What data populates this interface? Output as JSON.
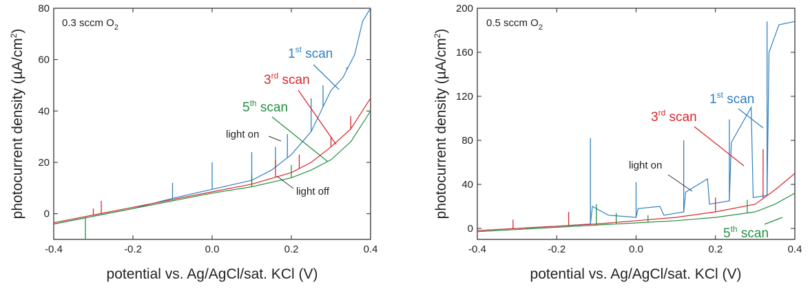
{
  "colors": {
    "scan1": "#2f7fc1",
    "scan3": "#d9262a",
    "scan5": "#23903f",
    "axis": "#222222",
    "annotation": "#333333"
  },
  "chart_data": [
    {
      "type": "line",
      "condition": {
        "text": "0.3 sccm O",
        "sub": "2"
      },
      "xlabel": "potential vs. Ag/AgCl/sat. KCl (V)",
      "ylabel": "photocurrent density (µA/cm²)",
      "ylabel_parts": {
        "main": "photocurrent density (µA/cm",
        "sup": "2",
        "end": ")"
      },
      "xlim": [
        -0.4,
        0.4
      ],
      "ylim": [
        -10,
        80
      ],
      "xticks": [
        "-0.4",
        "-0.2",
        "0.0",
        "0.2",
        "0.4"
      ],
      "yticks": [
        "0",
        "20",
        "40",
        "60",
        "80"
      ],
      "xtick_values": [
        -0.4,
        -0.2,
        0.0,
        0.2,
        0.4
      ],
      "ytick_values": [
        0,
        20,
        40,
        60,
        80
      ],
      "series": [
        {
          "key": "scan1",
          "label": {
            "num": "1",
            "sup": "st",
            "word": " scan"
          },
          "points": [
            [
              -0.4,
              -4
            ],
            [
              -0.3,
              -1
            ],
            [
              -0.2,
              2
            ],
            [
              -0.1,
              6
            ],
            [
              0.0,
              9.5
            ],
            [
              0.1,
              13
            ],
            [
              0.15,
              17
            ],
            [
              0.2,
              23
            ],
            [
              0.25,
              32
            ],
            [
              0.3,
              48
            ],
            [
              0.33,
              53
            ],
            [
              0.36,
              62
            ],
            [
              0.38,
              75
            ],
            [
              0.4,
              80
            ]
          ],
          "spikes": [
            [
              -0.1,
              12
            ],
            [
              0.0,
              20
            ],
            [
              0.1,
              24
            ],
            [
              0.16,
              26
            ],
            [
              0.19,
              31
            ],
            [
              0.25,
              45
            ],
            [
              0.28,
              50
            ],
            [
              0.34,
              57
            ]
          ]
        },
        {
          "key": "scan3",
          "label": {
            "num": "3",
            "sup": "rd",
            "word": " scan"
          },
          "points": [
            [
              -0.4,
              -3.5
            ],
            [
              -0.3,
              -0.5
            ],
            [
              -0.2,
              2.5
            ],
            [
              -0.1,
              5.5
            ],
            [
              0.0,
              8.5
            ],
            [
              0.1,
              11.5
            ],
            [
              0.2,
              16
            ],
            [
              0.25,
              20
            ],
            [
              0.3,
              26
            ],
            [
              0.35,
              33
            ],
            [
              0.4,
              45
            ]
          ],
          "spikes": [
            [
              -0.3,
              2
            ],
            [
              -0.28,
              5
            ],
            [
              0.1,
              14
            ],
            [
              0.16,
              21
            ],
            [
              0.22,
              23
            ],
            [
              0.3,
              30
            ],
            [
              0.35,
              38
            ]
          ]
        },
        {
          "key": "scan5",
          "label": {
            "num": "5",
            "sup": "th",
            "word": " scan"
          },
          "points": [
            [
              -0.4,
              -4
            ],
            [
              -0.3,
              -1
            ],
            [
              -0.2,
              2
            ],
            [
              -0.1,
              5
            ],
            [
              0.0,
              8
            ],
            [
              0.1,
              10.5
            ],
            [
              0.2,
              14
            ],
            [
              0.25,
              17
            ],
            [
              0.3,
              21
            ],
            [
              0.35,
              28
            ],
            [
              0.4,
              40
            ]
          ],
          "spikes": [
            [
              -0.32,
              -10
            ],
            [
              0.1,
              15
            ],
            [
              0.2,
              19
            ]
          ]
        }
      ],
      "annotations": {
        "light_on": "light on",
        "light_off": "light off"
      }
    },
    {
      "type": "line",
      "condition": {
        "text": "0.5 sccm O",
        "sub": "2"
      },
      "xlabel": "potential vs. Ag/AgCl/sat. KCl (V)",
      "ylabel": "photocurrent density (µA/cm²)",
      "ylabel_parts": {
        "main": "photocurrent density (µA/cm",
        "sup": "2",
        "end": ")"
      },
      "xlim": [
        -0.4,
        0.4
      ],
      "ylim": [
        -10,
        200
      ],
      "xticks": [
        "-0.4",
        "-0.2",
        "0.0",
        "0.2",
        "0.4"
      ],
      "yticks": [
        "0",
        "40",
        "80",
        "120",
        "160",
        "200"
      ],
      "xtick_values": [
        -0.4,
        -0.2,
        0.0,
        0.2,
        0.4
      ],
      "ytick_values": [
        0,
        40,
        80,
        120,
        160,
        200
      ],
      "series": [
        {
          "key": "scan1",
          "label": {
            "num": "1",
            "sup": "st",
            "word": " scan"
          },
          "points": [
            [
              -0.4,
              -2
            ],
            [
              -0.2,
              2
            ],
            [
              -0.115,
              4
            ],
            [
              -0.11,
              20
            ],
            [
              -0.07,
              12
            ],
            [
              0.0,
              10
            ],
            [
              0.005,
              18
            ],
            [
              0.06,
              20
            ],
            [
              0.07,
              12
            ],
            [
              0.12,
              15
            ],
            [
              0.125,
              33
            ],
            [
              0.18,
              45
            ],
            [
              0.185,
              22
            ],
            [
              0.235,
              25
            ],
            [
              0.24,
              78
            ],
            [
              0.29,
              110
            ],
            [
              0.295,
              28
            ],
            [
              0.33,
              30
            ],
            [
              0.335,
              160
            ],
            [
              0.36,
              185
            ],
            [
              0.4,
              188
            ]
          ],
          "spikes": [
            [
              -0.115,
              82
            ],
            [
              0.0,
              42
            ],
            [
              0.12,
              80
            ],
            [
              0.235,
              99
            ],
            [
              0.33,
              188
            ]
          ]
        },
        {
          "key": "scan3",
          "label": {
            "num": "3",
            "sup": "rd",
            "word": " scan"
          },
          "points": [
            [
              -0.4,
              -2
            ],
            [
              -0.2,
              2
            ],
            [
              -0.1,
              4
            ],
            [
              0.0,
              7
            ],
            [
              0.1,
              10
            ],
            [
              0.2,
              15
            ],
            [
              0.3,
              22
            ],
            [
              0.35,
              35
            ],
            [
              0.4,
              50
            ]
          ],
          "spikes": [
            [
              -0.31,
              8
            ],
            [
              -0.17,
              15
            ],
            [
              0.2,
              28
            ],
            [
              0.32,
              72
            ]
          ]
        },
        {
          "key": "scan5",
          "label": {
            "num": "5",
            "sup": "th",
            "word": " scan"
          },
          "points": [
            [
              -0.4,
              -3
            ],
            [
              -0.2,
              1
            ],
            [
              -0.1,
              3
            ],
            [
              0.0,
              5
            ],
            [
              0.1,
              7
            ],
            [
              0.2,
              10
            ],
            [
              0.3,
              15
            ],
            [
              0.35,
              22
            ],
            [
              0.4,
              32
            ]
          ],
          "spikes": [
            [
              -0.1,
              22
            ],
            [
              -0.05,
              14
            ],
            [
              0.03,
              12
            ],
            [
              0.28,
              26
            ]
          ]
        }
      ],
      "annotations": {
        "light_on": "light on"
      }
    }
  ]
}
